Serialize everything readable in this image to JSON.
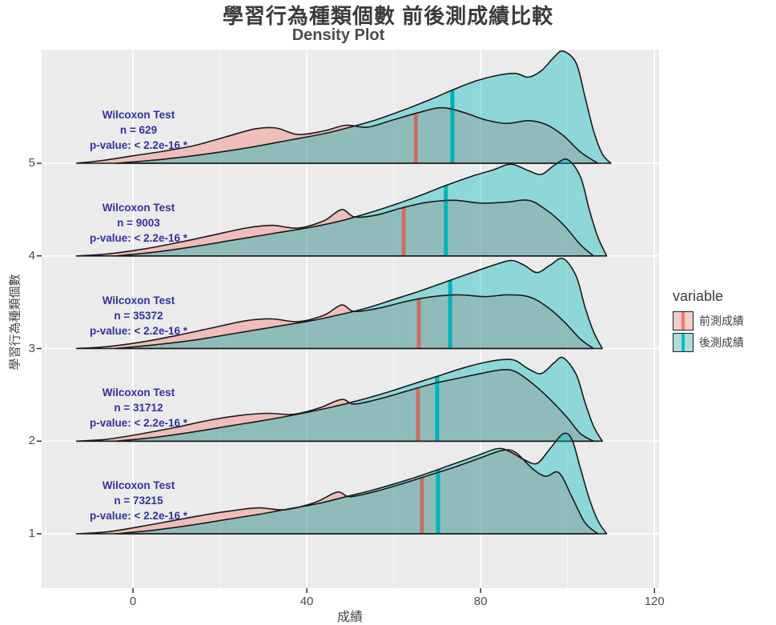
{
  "chart_data": {
    "type": "area",
    "variant": "density-ridgeline",
    "title": "學習行為種類個數 前後測成績比較",
    "subtitle": "Density Plot",
    "xlabel": "成績",
    "ylabel": "學習行為種類個數",
    "x_ticks": [
      0,
      40,
      80,
      120
    ],
    "x_minor_ticks": [
      -20,
      20,
      60,
      100
    ],
    "y_ticks": [
      5,
      4,
      3,
      2,
      1
    ],
    "xlim": [
      -21,
      121
    ],
    "grid": "white major+minor vertical, white major horizontal, gray panel",
    "legend": {
      "title": "variable",
      "position": "right",
      "entries": [
        {
          "label": "前測成績",
          "fill": "#f3cdc9",
          "line": "#F8766D"
        },
        {
          "label": "後測成績",
          "fill": "#aedcd9",
          "line": "#00BFC4"
        }
      ]
    },
    "colors": {
      "panel_bg": "#ebebeb",
      "outer_bg": "#ffffff",
      "pre_fill": "rgba(248,118,109,0.38)",
      "post_fill": "rgba(0,185,190,0.40)",
      "pre_median_line": "#c96f63",
      "post_median_line": "#00b3ba",
      "outline": "#1a1a1a",
      "annotation_text": "#32329e",
      "axis_text": "#4d4d4d"
    },
    "groups": [
      {
        "y": 5,
        "annotation": {
          "test": "Wilcoxon Test",
          "n": "n = 629",
          "p": "p-value: < 2.2e-16 *"
        },
        "median_pre": 65.1,
        "median_post": 73.5,
        "pre": [
          [
            -13,
            0
          ],
          [
            -7,
            0.03
          ],
          [
            0,
            0.08
          ],
          [
            7,
            0.13
          ],
          [
            14,
            0.19
          ],
          [
            21,
            0.28
          ],
          [
            28,
            0.37
          ],
          [
            33,
            0.38
          ],
          [
            38,
            0.31
          ],
          [
            44,
            0.35
          ],
          [
            49,
            0.41
          ],
          [
            54,
            0.39
          ],
          [
            60,
            0.47
          ],
          [
            66,
            0.55
          ],
          [
            71,
            0.6
          ],
          [
            76,
            0.55
          ],
          [
            81,
            0.47
          ],
          [
            86,
            0.43
          ],
          [
            91,
            0.46
          ],
          [
            95,
            0.42
          ],
          [
            99,
            0.3
          ],
          [
            103,
            0.12
          ],
          [
            107,
            0
          ]
        ],
        "post": [
          [
            -4,
            0
          ],
          [
            4,
            0.03
          ],
          [
            12,
            0.07
          ],
          [
            20,
            0.12
          ],
          [
            28,
            0.18
          ],
          [
            36,
            0.25
          ],
          [
            44,
            0.32
          ],
          [
            50,
            0.39
          ],
          [
            56,
            0.47
          ],
          [
            62,
            0.57
          ],
          [
            68,
            0.68
          ],
          [
            74,
            0.8
          ],
          [
            79,
            0.89
          ],
          [
            84,
            0.95
          ],
          [
            88,
            0.97
          ],
          [
            91,
            0.93
          ],
          [
            94,
            1.0
          ],
          [
            97,
            1.15
          ],
          [
            99,
            1.21
          ],
          [
            102,
            1.08
          ],
          [
            104,
            0.72
          ],
          [
            106,
            0.35
          ],
          [
            108,
            0.1
          ],
          [
            110,
            0
          ]
        ]
      },
      {
        "y": 4,
        "annotation": {
          "test": "Wilcoxon Test",
          "n": "n = 9003",
          "p": "p-value: < 2.2e-16 *"
        },
        "median_pre": 62.3,
        "median_post": 72.0,
        "pre": [
          [
            -13,
            0
          ],
          [
            -6,
            0.02
          ],
          [
            2,
            0.07
          ],
          [
            10,
            0.14
          ],
          [
            18,
            0.22
          ],
          [
            26,
            0.3
          ],
          [
            32,
            0.33
          ],
          [
            38,
            0.3
          ],
          [
            44,
            0.38
          ],
          [
            48,
            0.5
          ],
          [
            51,
            0.42
          ],
          [
            56,
            0.44
          ],
          [
            62,
            0.52
          ],
          [
            68,
            0.58
          ],
          [
            74,
            0.6
          ],
          [
            80,
            0.57
          ],
          [
            86,
            0.58
          ],
          [
            91,
            0.6
          ],
          [
            95,
            0.5
          ],
          [
            99,
            0.34
          ],
          [
            103,
            0.12
          ],
          [
            106,
            0
          ]
        ],
        "post": [
          [
            -4,
            0
          ],
          [
            5,
            0.04
          ],
          [
            14,
            0.1
          ],
          [
            23,
            0.17
          ],
          [
            32,
            0.24
          ],
          [
            41,
            0.31
          ],
          [
            48,
            0.38
          ],
          [
            54,
            0.46
          ],
          [
            60,
            0.55
          ],
          [
            66,
            0.65
          ],
          [
            72,
            0.76
          ],
          [
            78,
            0.86
          ],
          [
            83,
            0.93
          ],
          [
            87,
            0.99
          ],
          [
            91,
            0.92
          ],
          [
            94,
            0.88
          ],
          [
            97,
            0.98
          ],
          [
            100,
            1.04
          ],
          [
            103,
            0.85
          ],
          [
            105,
            0.5
          ],
          [
            107,
            0.2
          ],
          [
            109,
            0
          ]
        ]
      },
      {
        "y": 3,
        "annotation": {
          "test": "Wilcoxon Test",
          "n": "n = 35372",
          "p": "p-value: < 2.2e-16 *"
        },
        "median_pre": 65.8,
        "median_post": 73.0,
        "pre": [
          [
            -13,
            0
          ],
          [
            -6,
            0.02
          ],
          [
            2,
            0.07
          ],
          [
            10,
            0.14
          ],
          [
            18,
            0.22
          ],
          [
            26,
            0.3
          ],
          [
            32,
            0.32
          ],
          [
            38,
            0.29
          ],
          [
            44,
            0.36
          ],
          [
            48,
            0.47
          ],
          [
            51,
            0.4
          ],
          [
            57,
            0.44
          ],
          [
            63,
            0.51
          ],
          [
            69,
            0.56
          ],
          [
            75,
            0.58
          ],
          [
            81,
            0.56
          ],
          [
            86,
            0.58
          ],
          [
            91,
            0.56
          ],
          [
            95,
            0.46
          ],
          [
            99,
            0.3
          ],
          [
            103,
            0.1
          ],
          [
            106,
            0
          ]
        ],
        "post": [
          [
            -4,
            0
          ],
          [
            5,
            0.04
          ],
          [
            14,
            0.09
          ],
          [
            23,
            0.16
          ],
          [
            32,
            0.23
          ],
          [
            41,
            0.3
          ],
          [
            48,
            0.37
          ],
          [
            54,
            0.44
          ],
          [
            60,
            0.53
          ],
          [
            66,
            0.62
          ],
          [
            72,
            0.72
          ],
          [
            78,
            0.82
          ],
          [
            83,
            0.9
          ],
          [
            87,
            0.95
          ],
          [
            90,
            0.9
          ],
          [
            93,
            0.82
          ],
          [
            96,
            0.9
          ],
          [
            99,
            0.97
          ],
          [
            102,
            0.78
          ],
          [
            104,
            0.45
          ],
          [
            106,
            0.18
          ],
          [
            108,
            0
          ]
        ]
      },
      {
        "y": 2,
        "annotation": {
          "test": "Wilcoxon Test",
          "n": "n = 31712",
          "p": "p-value: < 2.2e-16 *"
        },
        "median_pre": 65.6,
        "median_post": 70.0,
        "pre": [
          [
            -13,
            0
          ],
          [
            -6,
            0.02
          ],
          [
            2,
            0.08
          ],
          [
            10,
            0.15
          ],
          [
            18,
            0.23
          ],
          [
            25,
            0.28
          ],
          [
            31,
            0.3
          ],
          [
            37,
            0.29
          ],
          [
            43,
            0.36
          ],
          [
            48,
            0.45
          ],
          [
            51,
            0.4
          ],
          [
            57,
            0.46
          ],
          [
            63,
            0.54
          ],
          [
            69,
            0.62
          ],
          [
            75,
            0.68
          ],
          [
            80,
            0.73
          ],
          [
            85,
            0.77
          ],
          [
            88,
            0.75
          ],
          [
            92,
            0.62
          ],
          [
            96,
            0.45
          ],
          [
            100,
            0.25
          ],
          [
            103,
            0.08
          ],
          [
            106,
            0
          ]
        ],
        "post": [
          [
            -4,
            0
          ],
          [
            5,
            0.04
          ],
          [
            14,
            0.1
          ],
          [
            23,
            0.17
          ],
          [
            31,
            0.23
          ],
          [
            39,
            0.3
          ],
          [
            46,
            0.37
          ],
          [
            52,
            0.44
          ],
          [
            58,
            0.52
          ],
          [
            64,
            0.61
          ],
          [
            70,
            0.7
          ],
          [
            76,
            0.79
          ],
          [
            81,
            0.85
          ],
          [
            85,
            0.88
          ],
          [
            88,
            0.87
          ],
          [
            91,
            0.78
          ],
          [
            94,
            0.73
          ],
          [
            97,
            0.85
          ],
          [
            99,
            0.9
          ],
          [
            102,
            0.72
          ],
          [
            104,
            0.42
          ],
          [
            106,
            0.16
          ],
          [
            108,
            0
          ]
        ]
      },
      {
        "y": 1,
        "annotation": {
          "test": "Wilcoxon Test",
          "n": "n = 73215",
          "p": "p-value: < 2.2e-16 *"
        },
        "median_pre": 66.5,
        "median_post": 70.2,
        "pre": [
          [
            -13,
            0
          ],
          [
            -6,
            0.02
          ],
          [
            2,
            0.08
          ],
          [
            9,
            0.14
          ],
          [
            16,
            0.2
          ],
          [
            23,
            0.25
          ],
          [
            29,
            0.28
          ],
          [
            35,
            0.26
          ],
          [
            42,
            0.34
          ],
          [
            47,
            0.45
          ],
          [
            50,
            0.4
          ],
          [
            56,
            0.46
          ],
          [
            62,
            0.54
          ],
          [
            68,
            0.63
          ],
          [
            74,
            0.72
          ],
          [
            80,
            0.82
          ],
          [
            85,
            0.9
          ],
          [
            88,
            0.88
          ],
          [
            92,
            0.7
          ],
          [
            95,
            0.62
          ],
          [
            98,
            0.66
          ],
          [
            101,
            0.4
          ],
          [
            104,
            0.12
          ],
          [
            107,
            0
          ]
        ],
        "post": [
          [
            -4,
            0
          ],
          [
            5,
            0.04
          ],
          [
            13,
            0.09
          ],
          [
            21,
            0.15
          ],
          [
            29,
            0.21
          ],
          [
            36,
            0.27
          ],
          [
            43,
            0.33
          ],
          [
            49,
            0.4
          ],
          [
            55,
            0.47
          ],
          [
            61,
            0.55
          ],
          [
            67,
            0.64
          ],
          [
            73,
            0.74
          ],
          [
            79,
            0.84
          ],
          [
            84,
            0.92
          ],
          [
            87,
            0.88
          ],
          [
            90,
            0.8
          ],
          [
            93,
            0.76
          ],
          [
            96,
            0.92
          ],
          [
            99,
            1.08
          ],
          [
            101,
            1.02
          ],
          [
            103,
            0.7
          ],
          [
            105,
            0.38
          ],
          [
            107,
            0.14
          ],
          [
            109,
            0
          ]
        ]
      }
    ]
  }
}
